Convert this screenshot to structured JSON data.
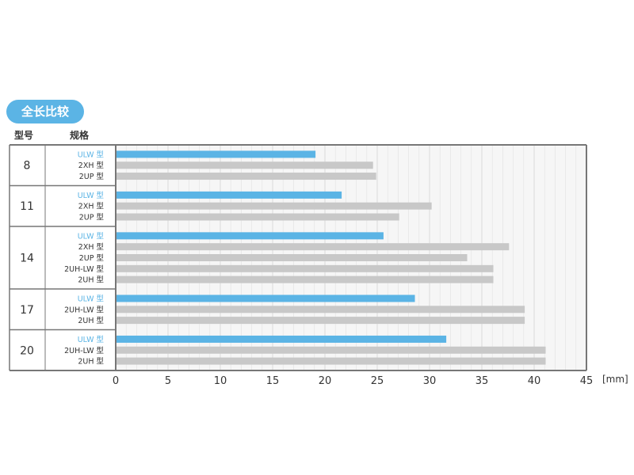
{
  "badge": "全长比较",
  "headers": {
    "model": "型号",
    "spec": "规格"
  },
  "unit": "[mm]",
  "colors": {
    "highlight": "#5bb4e5",
    "other": "#c8c8c8",
    "frame": "#777777",
    "grid": "#e2e2e2"
  },
  "chart_data": {
    "type": "bar",
    "orientation": "horizontal",
    "xlim": [
      0,
      45
    ],
    "xticks": [
      0,
      5,
      10,
      15,
      20,
      25,
      30,
      35,
      40,
      45
    ],
    "xunit": "[mm]",
    "grid": true,
    "groups": [
      {
        "model": "8",
        "bars": [
          {
            "spec": "ULW 型",
            "value": 19.1,
            "highlight": true
          },
          {
            "spec": "2XH 型",
            "value": 24.6
          },
          {
            "spec": "2UP 型",
            "value": 24.9
          }
        ]
      },
      {
        "model": "11",
        "bars": [
          {
            "spec": "ULW 型",
            "value": 21.6,
            "highlight": true
          },
          {
            "spec": "2XH 型",
            "value": 30.2
          },
          {
            "spec": "2UP 型",
            "value": 27.1
          }
        ]
      },
      {
        "model": "14",
        "bars": [
          {
            "spec": "ULW 型",
            "value": 25.6,
            "highlight": true
          },
          {
            "spec": "2XH 型",
            "value": 37.6
          },
          {
            "spec": "2UP 型",
            "value": 33.6
          },
          {
            "spec": "2UH-LW 型",
            "value": 36.1
          },
          {
            "spec": "2UH 型",
            "value": 36.1
          }
        ]
      },
      {
        "model": "17",
        "bars": [
          {
            "spec": "ULW 型",
            "value": 28.6,
            "highlight": true
          },
          {
            "spec": "2UH-LW 型",
            "value": 39.1
          },
          {
            "spec": "2UH 型",
            "value": 39.1
          }
        ]
      },
      {
        "model": "20",
        "bars": [
          {
            "spec": "ULW 型",
            "value": 31.6,
            "highlight": true
          },
          {
            "spec": "2UH-LW 型",
            "value": 41.1
          },
          {
            "spec": "2UH 型",
            "value": 41.1
          }
        ]
      }
    ]
  }
}
